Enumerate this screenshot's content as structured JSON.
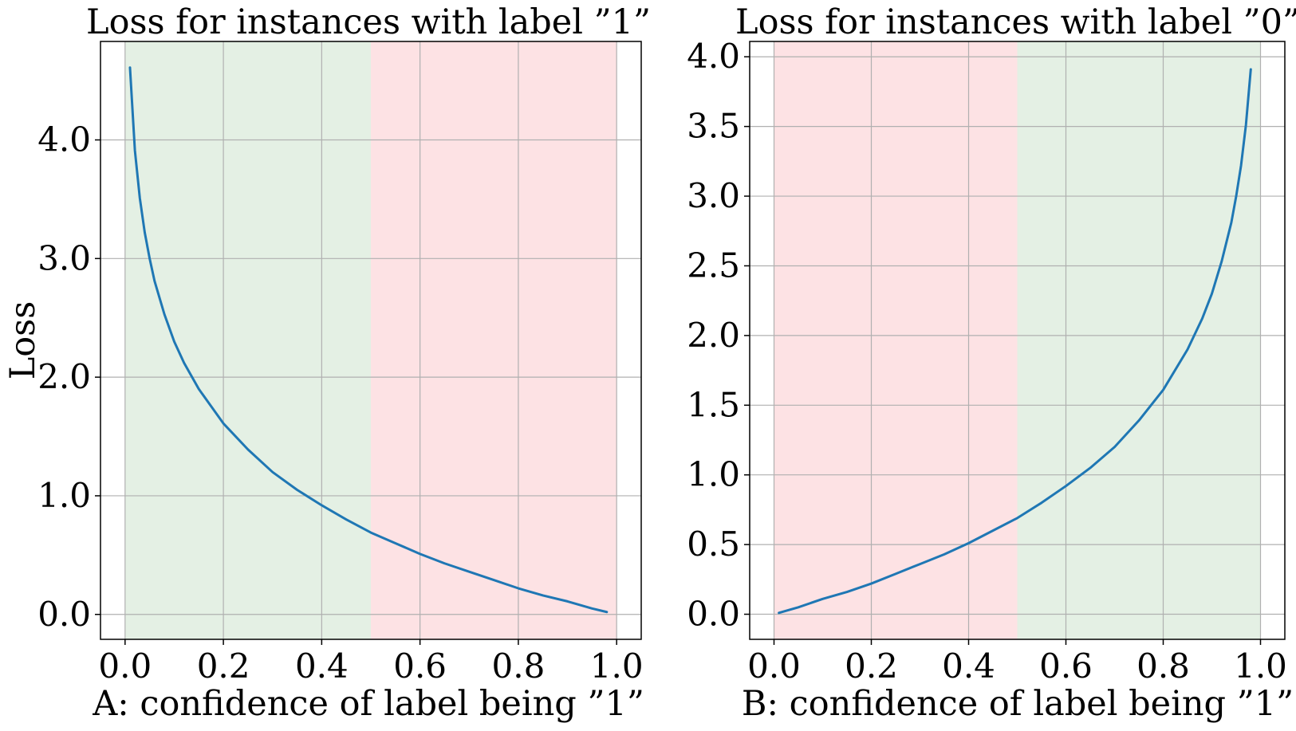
{
  "chart_data": [
    {
      "type": "line",
      "title": "Loss for instances with label ”1”",
      "xlabel": "A: confidence of label being ”1”",
      "ylabel": "Loss",
      "xlim": [
        -0.05,
        1.05
      ],
      "ylim": [
        -0.21,
        4.83
      ],
      "xticks": [
        0.0,
        0.2,
        0.4,
        0.6,
        0.8,
        1.0
      ],
      "xtick_labels": [
        "0.0",
        "0.2",
        "0.4",
        "0.6",
        "0.8",
        "1.0"
      ],
      "yticks": [
        0.0,
        1.0,
        2.0,
        3.0,
        4.0
      ],
      "ytick_labels": [
        "0.0",
        "1.0",
        "2.0",
        "3.0",
        "4.0"
      ],
      "grid": true,
      "regions": [
        {
          "x0": 0.0,
          "x1": 0.5,
          "color": "#e4f0e4"
        },
        {
          "x0": 0.5,
          "x1": 1.0,
          "color": "#fde2e4"
        }
      ],
      "series": [
        {
          "color": "#1f77b4",
          "x": [
            0.01,
            0.02,
            0.03,
            0.04,
            0.05,
            0.06,
            0.08,
            0.1,
            0.12,
            0.15,
            0.2,
            0.25,
            0.3,
            0.35,
            0.4,
            0.45,
            0.5,
            0.55,
            0.6,
            0.65,
            0.7,
            0.75,
            0.8,
            0.85,
            0.9,
            0.95,
            0.98
          ],
          "y": [
            4.61,
            3.91,
            3.51,
            3.22,
            3.0,
            2.81,
            2.53,
            2.3,
            2.12,
            1.9,
            1.61,
            1.39,
            1.2,
            1.05,
            0.92,
            0.8,
            0.69,
            0.6,
            0.51,
            0.43,
            0.36,
            0.29,
            0.22,
            0.16,
            0.11,
            0.05,
            0.02
          ]
        }
      ]
    },
    {
      "type": "line",
      "title": "Loss for instances with label ”0”",
      "xlabel": "B: confidence of label being ”1”",
      "ylabel": "",
      "xlim": [
        -0.05,
        1.05
      ],
      "ylim": [
        -0.18,
        4.11
      ],
      "xticks": [
        0.0,
        0.2,
        0.4,
        0.6,
        0.8,
        1.0
      ],
      "xtick_labels": [
        "0.0",
        "0.2",
        "0.4",
        "0.6",
        "0.8",
        "1.0"
      ],
      "yticks": [
        0.0,
        0.5,
        1.0,
        1.5,
        2.0,
        2.5,
        3.0,
        3.5,
        4.0
      ],
      "ytick_labels": [
        "0.0",
        "0.5",
        "1.0",
        "1.5",
        "2.0",
        "2.5",
        "3.0",
        "3.5",
        "4.0"
      ],
      "grid": true,
      "regions": [
        {
          "x0": 0.0,
          "x1": 0.5,
          "color": "#fde2e4"
        },
        {
          "x0": 0.5,
          "x1": 1.0,
          "color": "#e4f0e4"
        }
      ],
      "series": [
        {
          "color": "#1f77b4",
          "x": [
            0.01,
            0.05,
            0.1,
            0.15,
            0.2,
            0.25,
            0.3,
            0.35,
            0.4,
            0.45,
            0.5,
            0.55,
            0.6,
            0.65,
            0.7,
            0.75,
            0.8,
            0.85,
            0.88,
            0.9,
            0.92,
            0.94,
            0.95,
            0.96,
            0.97,
            0.98
          ],
          "y": [
            0.01,
            0.05,
            0.11,
            0.16,
            0.22,
            0.29,
            0.36,
            0.43,
            0.51,
            0.6,
            0.69,
            0.8,
            0.92,
            1.05,
            1.2,
            1.39,
            1.61,
            1.9,
            2.12,
            2.3,
            2.53,
            2.81,
            3.0,
            3.22,
            3.51,
            3.91
          ]
        }
      ]
    }
  ]
}
